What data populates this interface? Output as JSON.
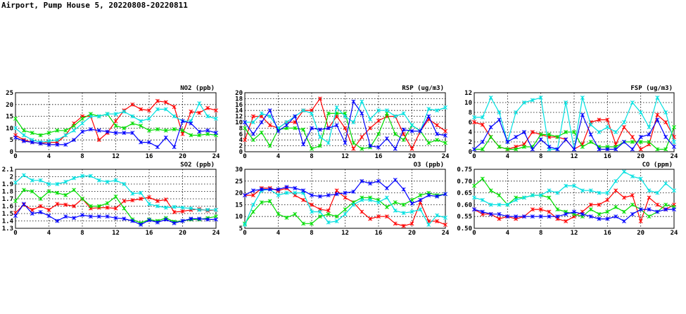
{
  "page": {
    "title": "Airport, Pump House 5, 20220808-20220811"
  },
  "series_colors": {
    "s1": "#ff0000",
    "s2": "#00dd00",
    "s3": "#00e0e0",
    "s4": "#0000ff"
  },
  "chart_data": [
    {
      "id": "no2",
      "type": "line",
      "title": "NO2 (ppb)",
      "xlim": [
        0,
        24
      ],
      "xticks": [
        "0",
        "4",
        "8",
        "12",
        "16",
        "20",
        "24"
      ],
      "ylim": [
        0,
        25
      ],
      "yticks": [
        0,
        5,
        10,
        15,
        20,
        25
      ],
      "series": [
        {
          "name": "s1",
          "color": "#ff0000",
          "values": [
            7,
            5,
            4,
            3.5,
            4,
            4,
            7,
            12,
            15,
            15,
            5,
            8,
            13,
            17.5,
            20,
            18,
            17.5,
            21.5,
            21,
            19,
            7.5,
            17,
            16.5,
            18.5,
            17.5
          ]
        },
        {
          "name": "s2",
          "color": "#00dd00",
          "values": [
            14,
            9,
            8,
            7,
            8,
            9,
            9,
            11,
            14,
            16,
            15,
            16,
            11,
            10,
            12,
            11,
            9,
            9.5,
            9,
            9.5,
            9,
            7,
            7,
            7.5,
            7
          ]
        },
        {
          "name": "s3",
          "color": "#00e0e0",
          "values": [
            10,
            7,
            5,
            4,
            4.5,
            5,
            7,
            9,
            12,
            15,
            15,
            16,
            16,
            17,
            15,
            13,
            14,
            18,
            18,
            15,
            13,
            13,
            20.5,
            15,
            14
          ]
        },
        {
          "name": "s4",
          "color": "#0000ff",
          "values": [
            6,
            4.5,
            4,
            3.5,
            3,
            3,
            3,
            5,
            8.5,
            9.5,
            9,
            8.5,
            8,
            8,
            8,
            4,
            4,
            2,
            6,
            2,
            13,
            12,
            8.5,
            9,
            8
          ]
        }
      ]
    },
    {
      "id": "rsp",
      "type": "line",
      "title": "RSP (ug/m3)",
      "xlim": [
        0,
        24
      ],
      "xticks": [
        "0",
        "4",
        "8",
        "12",
        "16",
        "20",
        "24"
      ],
      "ylim": [
        0,
        20
      ],
      "yticks": [
        0,
        2,
        4,
        6,
        8,
        10,
        12,
        14,
        16,
        18,
        20
      ],
      "series": [
        {
          "name": "s1",
          "color": "#ff0000",
          "values": [
            4,
            12,
            12,
            9,
            8,
            10,
            10,
            14,
            14,
            18,
            8,
            12,
            8,
            1,
            5,
            8,
            10.5,
            12,
            12,
            6,
            1,
            7,
            11,
            9,
            7
          ]
        },
        {
          "name": "s2",
          "color": "#00dd00",
          "values": [
            8,
            4,
            6.5,
            2,
            7.5,
            8,
            8,
            7.5,
            1,
            2,
            13,
            13,
            13,
            3,
            1,
            1.5,
            6,
            13,
            6,
            4,
            9,
            7,
            3,
            4,
            3
          ]
        },
        {
          "name": "s3",
          "color": "#00e0e0",
          "values": [
            10,
            10,
            13,
            12,
            8,
            10,
            12,
            14,
            13,
            5,
            3,
            15,
            12,
            10,
            17,
            11,
            14,
            14,
            12,
            13,
            9,
            7,
            14.5,
            14,
            15
          ]
        },
        {
          "name": "s4",
          "color": "#0000ff",
          "values": [
            10,
            6,
            10,
            14,
            7,
            9,
            12,
            2.5,
            8,
            7.5,
            8,
            9,
            3,
            17,
            13,
            2,
            1.5,
            4.5,
            1,
            7.5,
            7,
            7,
            12,
            6,
            5.5
          ]
        }
      ]
    },
    {
      "id": "fsp",
      "type": "line",
      "title": "FSP (ug/m3)",
      "xlim": [
        0,
        24
      ],
      "xticks": [
        "0",
        "4",
        "8",
        "12",
        "16",
        "20",
        "24"
      ],
      "ylim": [
        0,
        12
      ],
      "yticks": [
        0,
        2,
        4,
        6,
        8,
        10,
        12
      ],
      "series": [
        {
          "name": "s1",
          "color": "#ff0000",
          "values": [
            6,
            5.5,
            3,
            1,
            0.5,
            1,
            1.5,
            4,
            3.5,
            3,
            3,
            2.5,
            0.5,
            1.5,
            6,
            6.5,
            6.5,
            1.5,
            5,
            3,
            0.5,
            1.5,
            7.5,
            6,
            3
          ]
        },
        {
          "name": "s2",
          "color": "#00dd00",
          "values": [
            0.5,
            0.5,
            3,
            1,
            0.5,
            0.5,
            1,
            1,
            3.5,
            3.5,
            3,
            4,
            4,
            1,
            2,
            1,
            1,
            1,
            2,
            2,
            2,
            2,
            0.5,
            0.5,
            5
          ]
        },
        {
          "name": "s3",
          "color": "#00e0e0",
          "values": [
            7,
            7,
            11,
            8,
            2,
            8,
            10,
            10.5,
            11,
            0.5,
            0.5,
            10,
            0.5,
            11,
            5.5,
            4,
            5,
            4,
            6,
            10,
            8,
            5,
            11,
            8,
            2
          ]
        },
        {
          "name": "s4",
          "color": "#0000ff",
          "values": [
            0.5,
            2,
            5,
            6.5,
            2,
            3,
            4,
            0.5,
            2.5,
            1,
            0.5,
            2.5,
            0.5,
            7.5,
            3.5,
            0.5,
            0.5,
            0.5,
            2,
            0.5,
            3,
            3.5,
            6.5,
            3,
            1
          ]
        }
      ]
    },
    {
      "id": "so2",
      "type": "line",
      "title": "SO2 (ppb)",
      "xlim": [
        0,
        24
      ],
      "xticks": [
        "0",
        "4",
        "8",
        "12",
        "16",
        "20",
        "24"
      ],
      "ylim": [
        1.3,
        2.1
      ],
      "yticks": [
        1.3,
        1.4,
        1.5,
        1.6,
        1.7,
        1.8,
        1.9,
        2.0,
        2.1
      ],
      "series": [
        {
          "name": "s1",
          "color": "#ff0000",
          "values": [
            1.51,
            1.62,
            1.55,
            1.6,
            1.55,
            1.63,
            1.62,
            1.6,
            1.7,
            1.57,
            1.58,
            1.58,
            1.57,
            1.67,
            1.68,
            1.7,
            1.72,
            1.67,
            1.69,
            1.52,
            1.53,
            1.55,
            1.56,
            1.54,
            1.55
          ]
        },
        {
          "name": "s2",
          "color": "#00dd00",
          "values": [
            1.67,
            1.82,
            1.8,
            1.7,
            1.8,
            1.78,
            1.75,
            1.82,
            1.7,
            1.6,
            1.6,
            1.64,
            1.73,
            1.57,
            1.42,
            1.37,
            1.42,
            1.4,
            1.44,
            1.39,
            1.4,
            1.42,
            1.42,
            1.44,
            1.46
          ]
        },
        {
          "name": "s3",
          "color": "#00e0e0",
          "values": [
            1.92,
            2.02,
            1.95,
            1.95,
            1.9,
            1.9,
            1.93,
            1.98,
            2.01,
            2.01,
            1.95,
            1.93,
            1.95,
            1.9,
            1.77,
            1.78,
            1.63,
            1.6,
            1.58,
            1.59,
            1.58,
            1.57,
            1.55,
            1.55,
            1.55
          ]
        },
        {
          "name": "s4",
          "color": "#0000ff",
          "values": [
            1.47,
            1.63,
            1.5,
            1.52,
            1.47,
            1.4,
            1.46,
            1.44,
            1.48,
            1.46,
            1.46,
            1.46,
            1.44,
            1.43,
            1.4,
            1.35,
            1.41,
            1.38,
            1.42,
            1.37,
            1.4,
            1.43,
            1.43,
            1.42,
            1.42
          ]
        }
      ]
    },
    {
      "id": "o3",
      "type": "line",
      "title": "O3 (ppb)",
      "xlim": [
        0,
        24
      ],
      "xticks": [
        "0",
        "4",
        "8",
        "12",
        "16",
        "20",
        "24"
      ],
      "ylim": [
        5,
        30
      ],
      "yticks": [
        5,
        10,
        15,
        20,
        25,
        30
      ],
      "series": [
        {
          "name": "s1",
          "color": "#ff0000",
          "values": [
            19,
            19,
            22,
            22,
            21,
            22,
            19,
            17,
            15,
            13,
            12.5,
            21,
            18,
            16,
            12,
            9,
            10,
            10,
            7,
            6,
            7,
            16,
            8,
            8,
            6.5
          ]
        },
        {
          "name": "s2",
          "color": "#00dd00",
          "values": [
            7,
            12,
            16,
            16.5,
            11,
            9.5,
            11,
            7,
            7,
            10,
            11,
            10,
            13,
            16,
            18,
            18,
            17,
            14,
            16,
            15,
            17,
            19,
            20,
            19,
            19.5
          ]
        },
        {
          "name": "s3",
          "color": "#00e0e0",
          "values": [
            6.5,
            15,
            21,
            21.5,
            19,
            20,
            20,
            20,
            12,
            12,
            7.5,
            8,
            11,
            15,
            17,
            17,
            16,
            18,
            12.5,
            11.5,
            12,
            13,
            6.5,
            10.5,
            9.5
          ]
        },
        {
          "name": "s4",
          "color": "#0000ff",
          "values": [
            19,
            21,
            21.5,
            21.5,
            21.5,
            22.5,
            22,
            21,
            19,
            18.5,
            19,
            19.5,
            20,
            20.5,
            25,
            24,
            25,
            22,
            25.5,
            21.5,
            15.5,
            17,
            19,
            18.5,
            19.5
          ]
        }
      ]
    },
    {
      "id": "co",
      "type": "line",
      "title": "CO (ppm)",
      "xlim": [
        0,
        24
      ],
      "xticks": [
        "0",
        "4",
        "8",
        "12",
        "16",
        "20",
        "24"
      ],
      "ylim": [
        0.5,
        0.75
      ],
      "yticks": [
        0.5,
        0.55,
        0.6,
        0.65,
        0.7,
        0.75
      ],
      "series": [
        {
          "name": "s1",
          "color": "#ff0000",
          "values": [
            0.58,
            0.56,
            0.56,
            0.54,
            0.55,
            0.54,
            0.55,
            0.58,
            0.58,
            0.57,
            0.54,
            0.53,
            0.55,
            0.57,
            0.6,
            0.6,
            0.62,
            0.66,
            0.63,
            0.64,
            0.53,
            0.63,
            0.6,
            0.58,
            0.6
          ]
        },
        {
          "name": "s2",
          "color": "#00dd00",
          "values": [
            0.68,
            0.71,
            0.66,
            0.64,
            0.6,
            0.63,
            0.63,
            0.64,
            0.64,
            0.63,
            0.58,
            0.57,
            0.56,
            0.55,
            0.58,
            0.56,
            0.57,
            0.59,
            0.57,
            0.6,
            0.58,
            0.55,
            0.57,
            0.6,
            0.59
          ]
        },
        {
          "name": "s3",
          "color": "#00e0e0",
          "values": [
            0.63,
            0.62,
            0.6,
            0.6,
            0.6,
            0.62,
            0.63,
            0.64,
            0.64,
            0.66,
            0.65,
            0.68,
            0.68,
            0.66,
            0.66,
            0.65,
            0.65,
            0.7,
            0.74,
            0.72,
            0.71,
            0.66,
            0.65,
            0.69,
            0.66
          ]
        },
        {
          "name": "s4",
          "color": "#0000ff",
          "values": [
            0.58,
            0.57,
            0.56,
            0.56,
            0.55,
            0.55,
            0.55,
            0.55,
            0.55,
            0.55,
            0.55,
            0.56,
            0.57,
            0.56,
            0.55,
            0.54,
            0.54,
            0.55,
            0.53,
            0.56,
            0.58,
            0.58,
            0.57,
            0.58,
            0.58
          ]
        }
      ]
    }
  ]
}
